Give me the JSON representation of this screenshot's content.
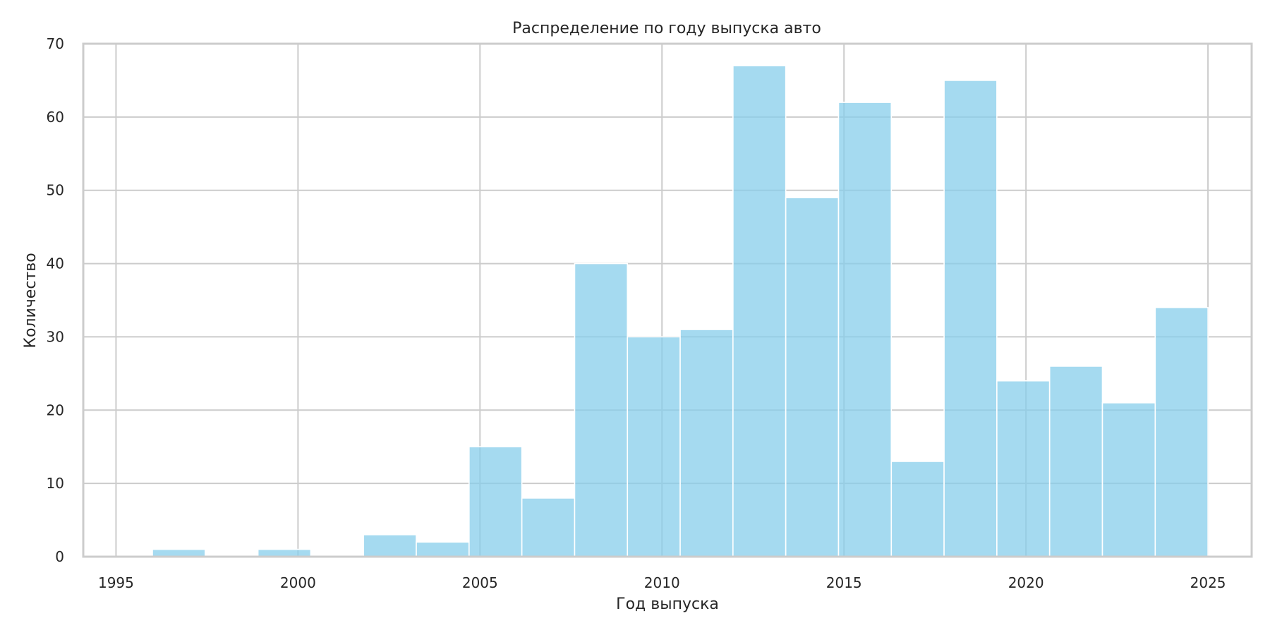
{
  "chart_data": {
    "type": "bar",
    "title": "Распределение по году выпуска авто",
    "xlabel": "Год выпуска",
    "ylabel": "Количество",
    "xlim": [
      1994.1,
      2026.2
    ],
    "ylim": [
      0,
      70
    ],
    "grid": true,
    "legend": "none",
    "x_ticks": [
      1995,
      2000,
      2005,
      2010,
      2015,
      2020,
      2025
    ],
    "y_ticks": [
      0,
      10,
      20,
      30,
      40,
      50,
      60,
      70
    ],
    "bin_edges": [
      1996.0,
      1997.45,
      1998.9,
      2000.35,
      2001.8,
      2003.25,
      2004.7,
      2006.15,
      2007.6,
      2009.05,
      2010.5,
      2011.95,
      2013.4,
      2014.85,
      2016.3,
      2017.75,
      2019.2,
      2020.65,
      2022.1,
      2023.55,
      2025.0
    ],
    "values": [
      1,
      0,
      1,
      0,
      3,
      2,
      15,
      8,
      40,
      30,
      31,
      67,
      49,
      62,
      13,
      65,
      24,
      26,
      21,
      34
    ],
    "colors": {
      "bar": "#87ceeb",
      "grid": "#cccccc",
      "text": "#262626"
    }
  }
}
